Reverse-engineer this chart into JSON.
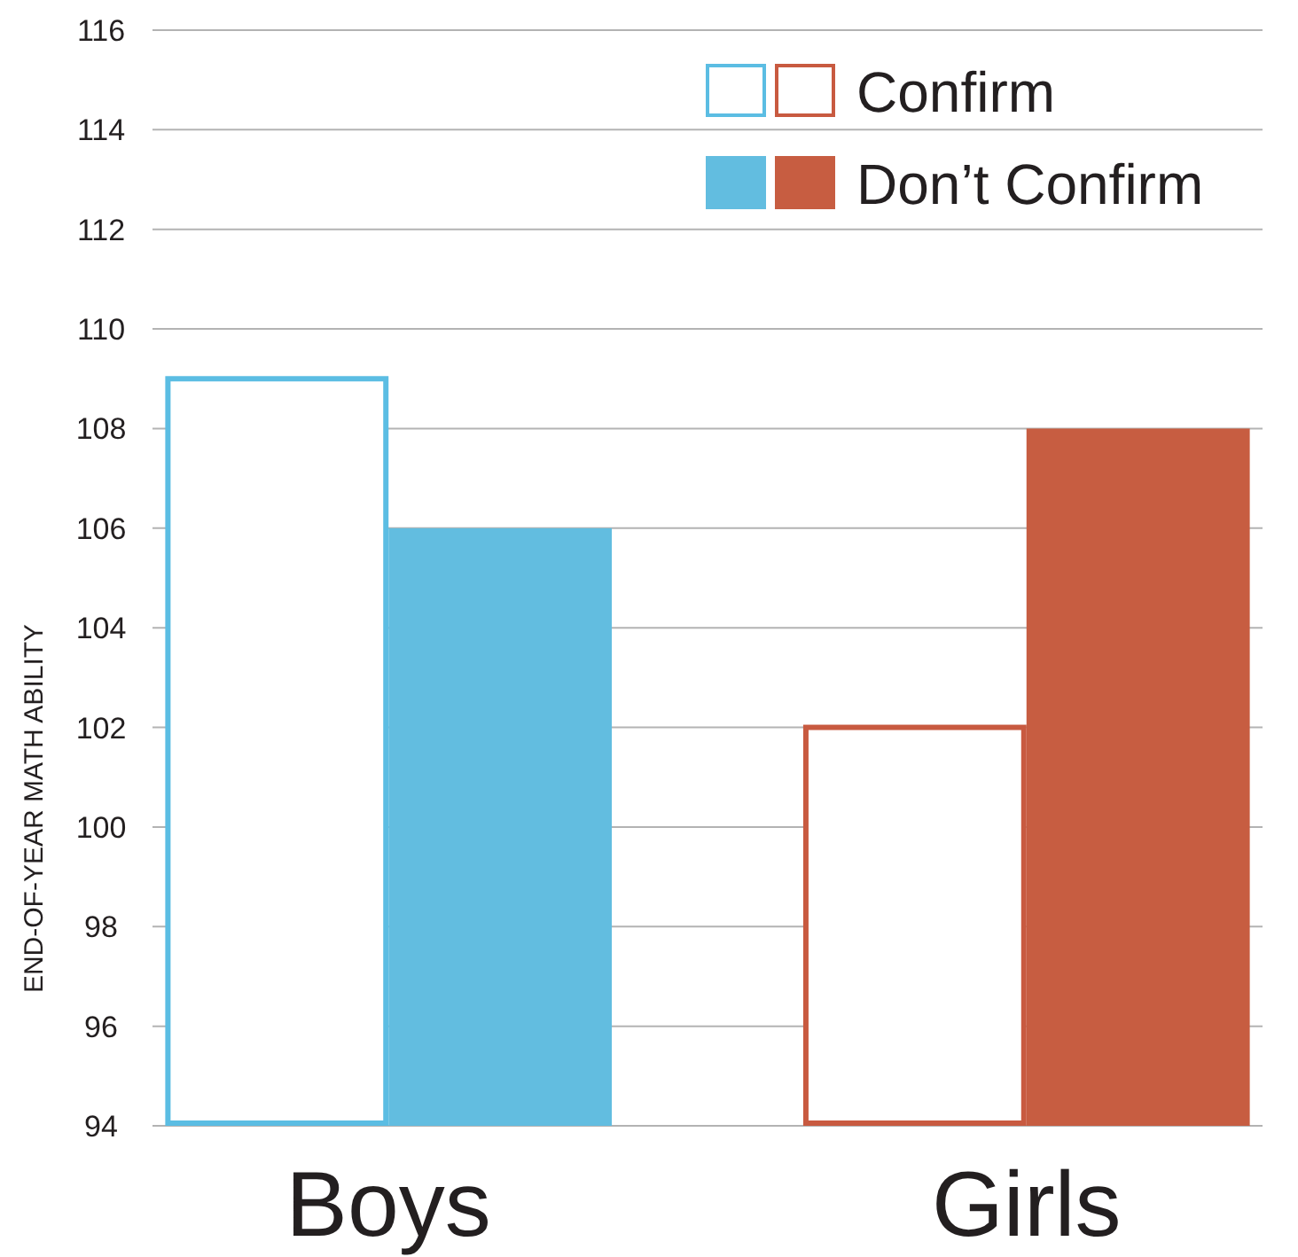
{
  "chart_data": {
    "type": "bar",
    "categories": [
      "Boys",
      "Girls"
    ],
    "series": [
      {
        "name": "Confirm",
        "colors": [
          "#5bbde3",
          "#c85a40"
        ],
        "values": [
          109,
          102
        ]
      },
      {
        "name": "Don’t Confirm",
        "colors": [
          "#62bde0",
          "#c75d41"
        ],
        "values": [
          106,
          108
        ]
      }
    ],
    "ylabel": "END-OF-YEAR MATH ABILITY",
    "ylim": [
      94,
      116
    ],
    "yticks": [
      94,
      96,
      98,
      100,
      102,
      104,
      106,
      108,
      110,
      112,
      114,
      116
    ],
    "grid": "y",
    "legend": "top right"
  }
}
